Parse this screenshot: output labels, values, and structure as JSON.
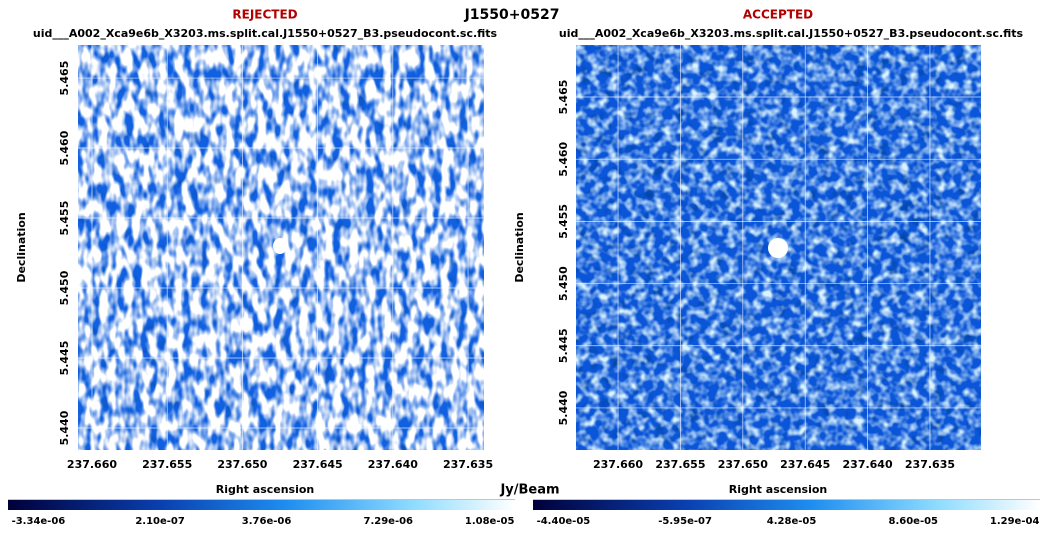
{
  "title": "J1550+0527",
  "colorbar_label": "Jy/Beam",
  "chart_data": [
    {
      "type": "image",
      "status": "REJECTED",
      "file": "uid___A002_Xca9e6b_X3203.ms.split.cal.J1550+0527_B3.pseudocont.sc.fits",
      "xlabel": "Right ascension",
      "ylabel": "Declination",
      "xlim": [
        237.66093,
        237.63394
      ],
      "ylim": [
        5.43843,
        5.46736
      ],
      "xticks": [
        {
          "value": 237.66,
          "label": "237.660"
        },
        {
          "value": 237.655,
          "label": "237.655"
        },
        {
          "value": 237.65,
          "label": "237.650"
        },
        {
          "value": 237.645,
          "label": "237.645"
        },
        {
          "value": 237.64,
          "label": "237.640"
        },
        {
          "value": 237.635,
          "label": "237.635"
        }
      ],
      "yticks": [
        {
          "value": 5.44,
          "label": "5.440"
        },
        {
          "value": 5.445,
          "label": "5.445"
        },
        {
          "value": 5.45,
          "label": "5.450"
        },
        {
          "value": 5.455,
          "label": "5.455"
        },
        {
          "value": 5.46,
          "label": "5.460"
        },
        {
          "value": 5.465,
          "label": "5.465"
        }
      ],
      "colorbar_ticks": [
        "-3.34e-06",
        "2.10e-07",
        "3.76e-06",
        "7.29e-06",
        "1.08e-05"
      ],
      "grid": true
    },
    {
      "type": "image",
      "status": "ACCEPTED",
      "file": "uid___A002_Xca9e6b_X3203.ms.split.cal.J1550+0527_B3.pseudocont.sc.fits",
      "xlabel": "Right ascension",
      "ylabel": "Declination",
      "xlim": [
        237.66337,
        237.63091
      ],
      "ylim": [
        5.43662,
        5.46918
      ],
      "xticks": [
        {
          "value": 237.66,
          "label": "237.660"
        },
        {
          "value": 237.655,
          "label": "237.655"
        },
        {
          "value": 237.65,
          "label": "237.650"
        },
        {
          "value": 237.645,
          "label": "237.645"
        },
        {
          "value": 237.64,
          "label": "237.640"
        },
        {
          "value": 237.635,
          "label": "237.635"
        }
      ],
      "yticks": [
        {
          "value": 5.44,
          "label": "5.440"
        },
        {
          "value": 5.445,
          "label": "5.445"
        },
        {
          "value": 5.45,
          "label": "5.450"
        },
        {
          "value": 5.455,
          "label": "5.455"
        },
        {
          "value": 5.46,
          "label": "5.460"
        },
        {
          "value": 5.465,
          "label": "5.465"
        }
      ],
      "colorbar_ticks": [
        "-4.40e-05",
        "-5.95e-07",
        "4.28e-05",
        "8.60e-05",
        "1.29e-04"
      ],
      "grid": true
    }
  ]
}
